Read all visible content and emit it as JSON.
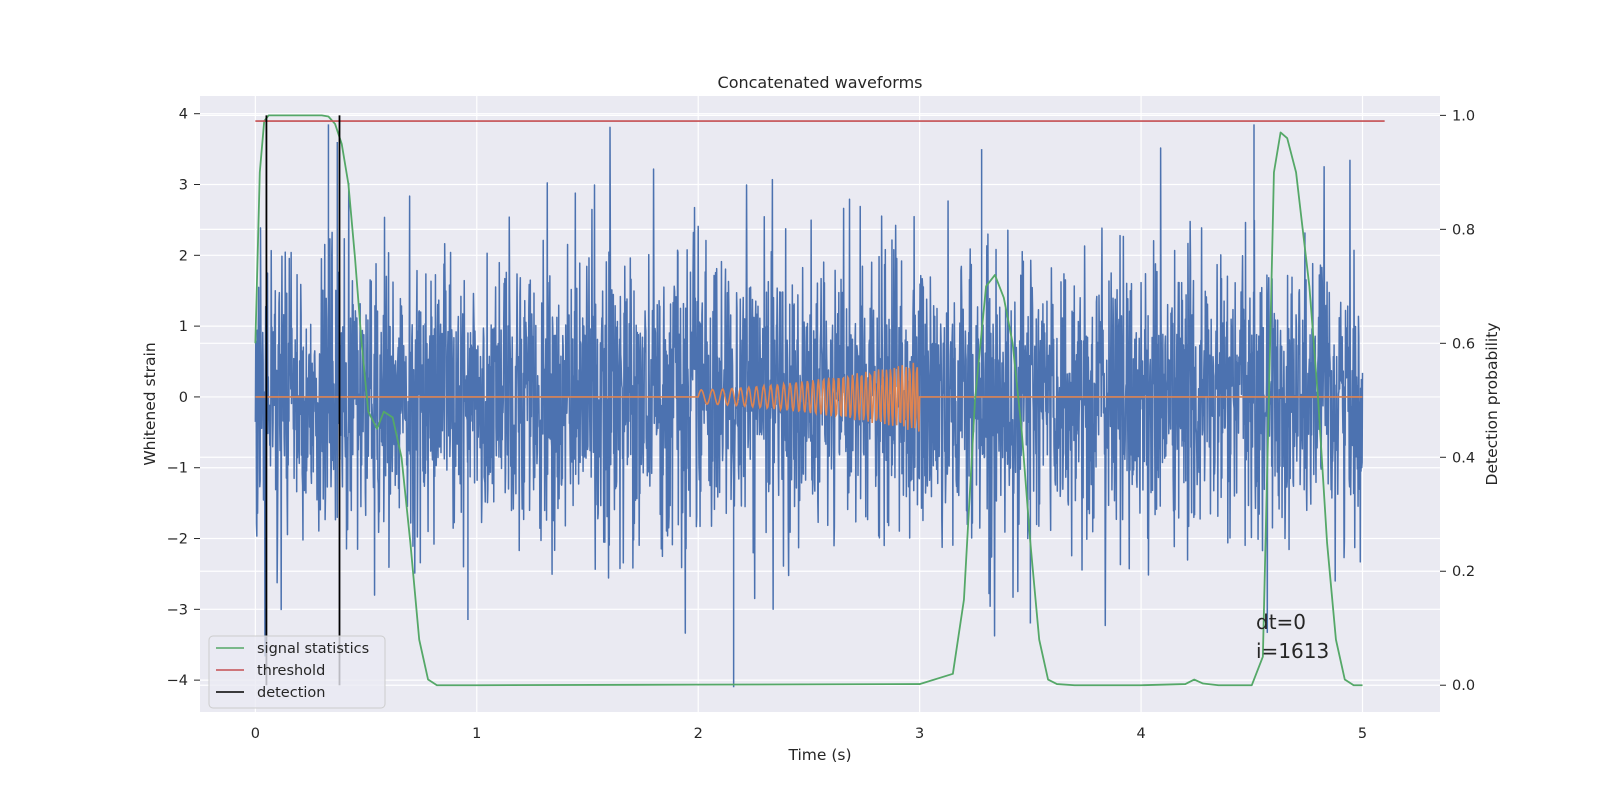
{
  "chart_data": {
    "type": "line",
    "title": "Concatenated waveforms",
    "xlabel": "Time (s)",
    "ylabel": "Whitened strain",
    "ylabel_right": "Detection probability",
    "xlim": [
      -0.25,
      5.35
    ],
    "ylim": [
      -4.45,
      4.25
    ],
    "ylim_right": [
      -0.047,
      1.034
    ],
    "xticks": [
      0,
      1,
      2,
      3,
      4,
      5
    ],
    "yticks": [
      -4,
      -3,
      -2,
      -1,
      0,
      1,
      2,
      3,
      4
    ],
    "yticks_right": [
      0.0,
      0.2,
      0.4,
      0.6,
      0.8,
      1.0
    ],
    "xtick_labels": [
      "0",
      "1",
      "2",
      "3",
      "4",
      "5"
    ],
    "ytick_labels": [
      "−4",
      "−3",
      "−2",
      "−1",
      "0",
      "1",
      "2",
      "3",
      "4"
    ],
    "ytick_labels_right": [
      "0.0",
      "0.2",
      "0.4",
      "0.6",
      "0.8",
      "1.0"
    ],
    "grid": true,
    "legend_position": "lower-left",
    "colors": {
      "noise": "#4c72b0",
      "injection": "#dd8452",
      "signal_statistics": "#55a868",
      "threshold": "#c44e52",
      "detection": "#000000",
      "axes_bg": "#eaeaf2",
      "grid": "#ffffff"
    },
    "series": [
      {
        "name": "noise",
        "axis": "left",
        "x_range": [
          0,
          5
        ],
        "envelope": {
          "typical_abs": 1.0,
          "max_positive": 3.85,
          "min_negative": -4.1
        }
      },
      {
        "name": "injection",
        "axis": "left",
        "x_range": [
          0,
          5
        ],
        "chirp_start": 2.0,
        "chirp_end": 3.0,
        "amplitude_start": 0.1,
        "amplitude_end": 0.5
      },
      {
        "name": "signal statistics",
        "axis": "right",
        "x": [
          0.0,
          0.02,
          0.04,
          0.06,
          0.1,
          0.2,
          0.3,
          0.33,
          0.36,
          0.39,
          0.42,
          0.45,
          0.48,
          0.51,
          0.55,
          0.58,
          0.62,
          0.66,
          0.7,
          0.74,
          0.78,
          0.82,
          1.0,
          2.0,
          3.0,
          3.15,
          3.2,
          3.25,
          3.3,
          3.34,
          3.38,
          3.42,
          3.46,
          3.5,
          3.54,
          3.58,
          3.62,
          3.7,
          4.0,
          4.2,
          4.24,
          4.28,
          4.35,
          4.5,
          4.55,
          4.58,
          4.6,
          4.63,
          4.66,
          4.7,
          4.73,
          4.76,
          4.8,
          4.84,
          4.88,
          4.92,
          4.96,
          5.0
        ],
        "y": [
          0.6,
          0.9,
          0.99,
          1.0,
          1.0,
          1.0,
          1.0,
          0.998,
          0.985,
          0.95,
          0.88,
          0.75,
          0.6,
          0.48,
          0.45,
          0.48,
          0.47,
          0.4,
          0.25,
          0.08,
          0.01,
          0.0,
          0.0,
          0.001,
          0.002,
          0.02,
          0.15,
          0.5,
          0.7,
          0.72,
          0.68,
          0.6,
          0.45,
          0.25,
          0.08,
          0.01,
          0.002,
          0.0,
          0.0,
          0.002,
          0.01,
          0.003,
          0.0,
          0.0,
          0.05,
          0.55,
          0.9,
          0.97,
          0.96,
          0.9,
          0.8,
          0.7,
          0.5,
          0.25,
          0.08,
          0.01,
          0.0,
          0.0
        ]
      },
      {
        "name": "threshold",
        "axis": "right",
        "x": [
          0.0,
          5.1
        ],
        "y": [
          0.99,
          0.99
        ]
      },
      {
        "name": "detection",
        "axis": "right",
        "x": [
          0.05,
          0.38
        ],
        "y_range": [
          0.0,
          1.0
        ]
      }
    ],
    "legend": [
      "signal statistics",
      "threshold",
      "detection"
    ],
    "annotations": [
      "dt=0",
      "i=1613"
    ]
  }
}
